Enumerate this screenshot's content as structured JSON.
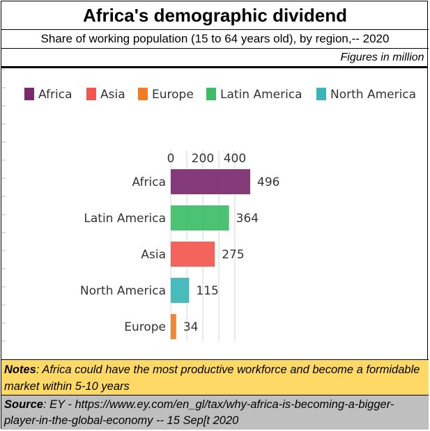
{
  "header": {
    "title": "Africa's demographic dividend",
    "subtitle": "Share of working population (15 to 64 years old), by region,-- 2020",
    "units": "Figures in million"
  },
  "footer": {
    "notes_label": "Notes",
    "notes_text": ": Africa could have the most productive workforce  and become a formidable market within 5-10  years",
    "source_label": "Source",
    "source_text": ": EY - https://www.ey.com/en_gl/tax/why-africa-is-becoming-a-bigger-player-in-the-global-economy    -- 15 Sep[t 2020"
  },
  "chart_data": {
    "type": "bar",
    "orientation": "horizontal",
    "title": "",
    "xlabel": "",
    "ylabel": "",
    "categories": [
      "Africa",
      "Latin America",
      "Asia",
      "North America",
      "Europe"
    ],
    "values": [
      496,
      364,
      275,
      115,
      34
    ],
    "colors": [
      "#7b2a6e",
      "#3dbd68",
      "#f4564f",
      "#3bb5b7",
      "#f07c25"
    ],
    "xticks": [
      0,
      200,
      400
    ],
    "xlim": [
      0,
      500
    ],
    "grid": true,
    "legend_position": "top",
    "legend": [
      {
        "label": "Africa",
        "color": "#7b2a6e"
      },
      {
        "label": "Asia",
        "color": "#f4564f"
      },
      {
        "label": "Europe",
        "color": "#f07c25"
      },
      {
        "label": "Latin America",
        "color": "#3dbd68"
      },
      {
        "label": "North America",
        "color": "#3bb5b7"
      }
    ]
  }
}
